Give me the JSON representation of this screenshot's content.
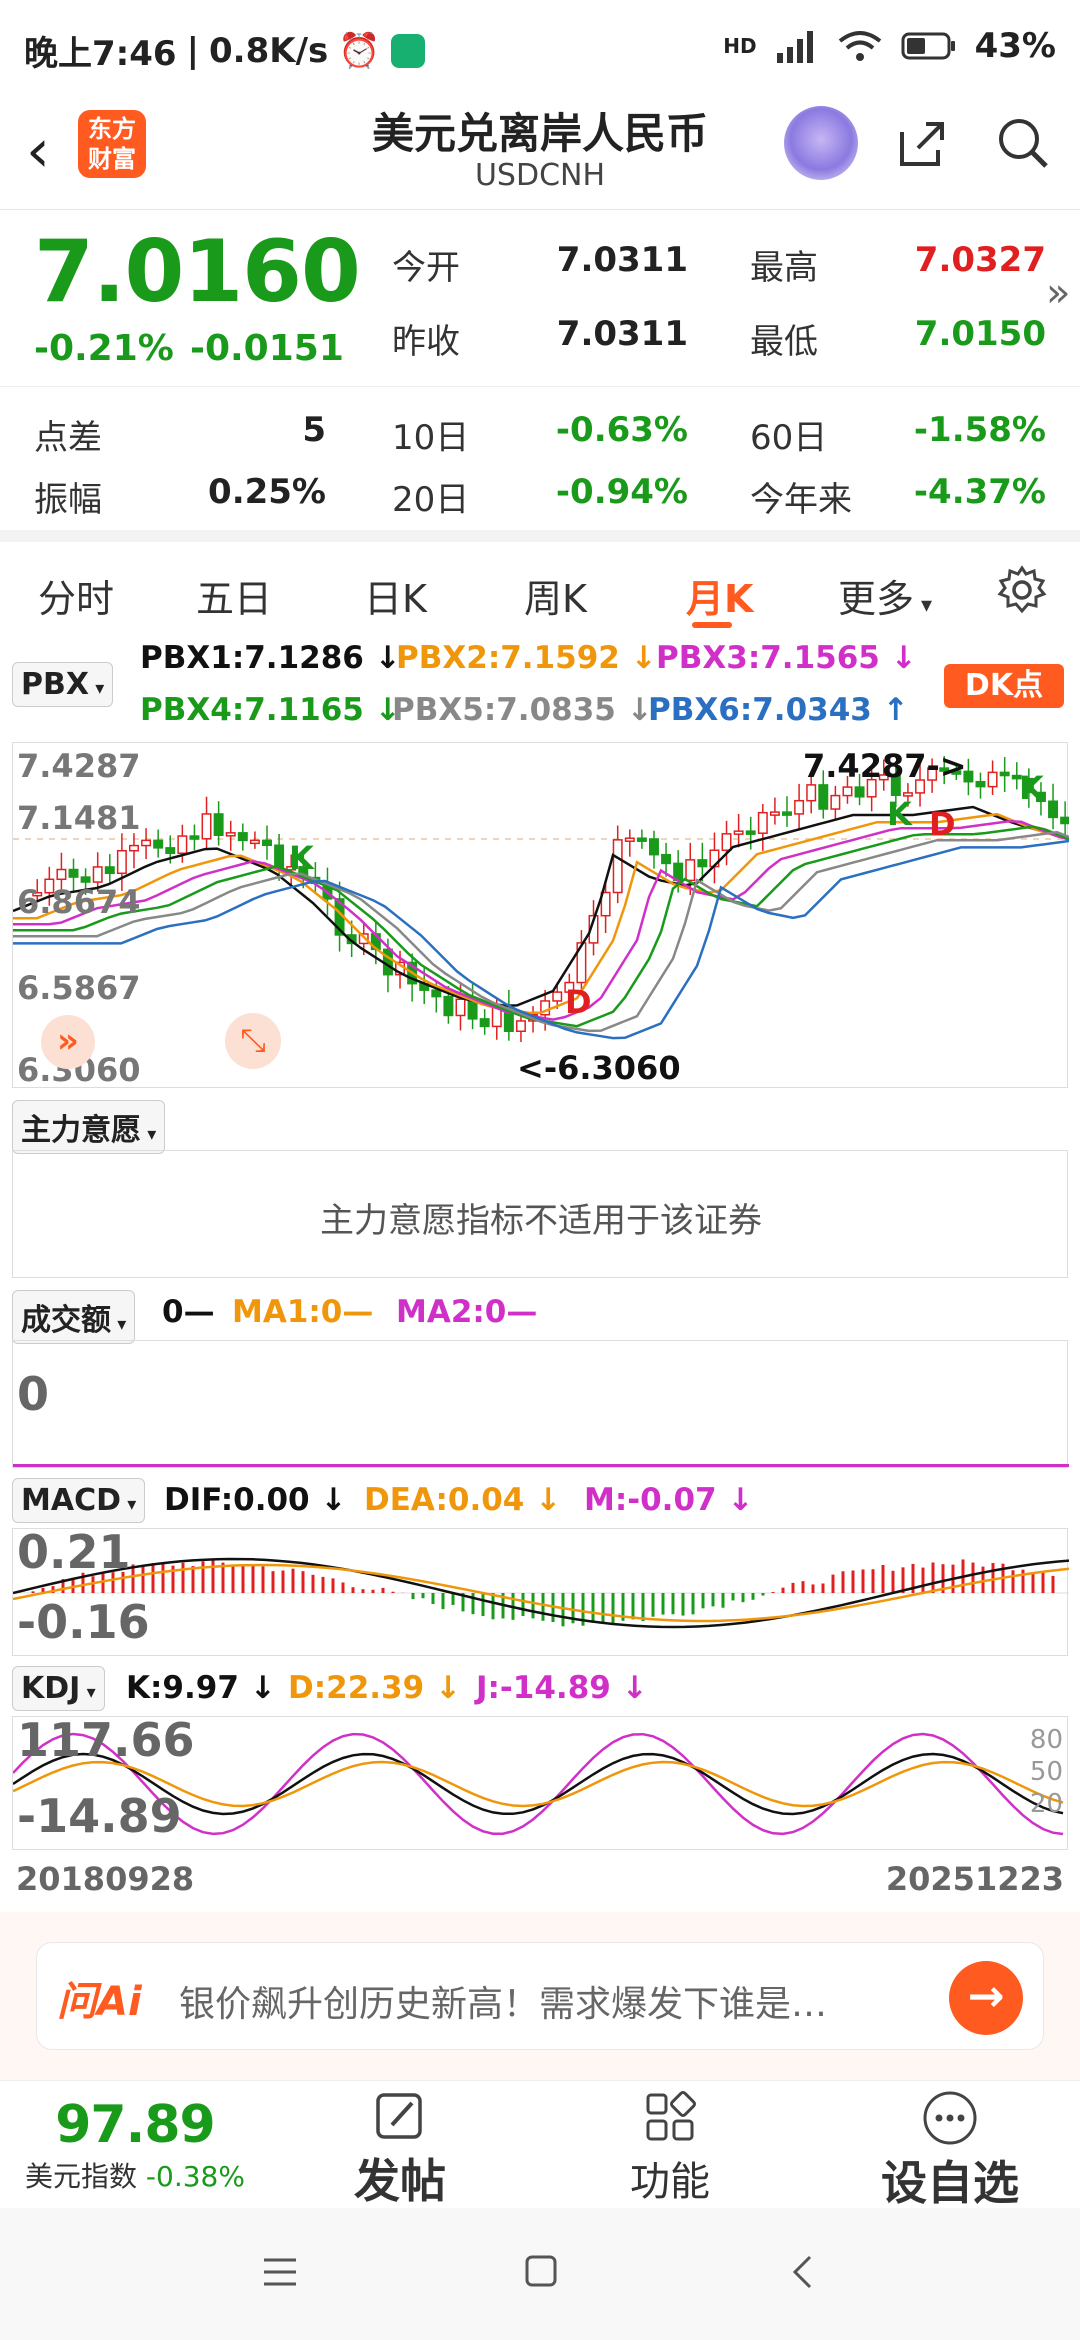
{
  "status_bar": {
    "time": "晚上7:46",
    "speed": "0.8K/s",
    "signal": "HD",
    "battery": "43%"
  },
  "header": {
    "logo_text": "东方财富",
    "title": "美元兑离岸人民币",
    "subtitle": "USDCNH"
  },
  "quote": {
    "price": "7.0160",
    "change_pct": "-0.21%",
    "change": "-0.0151",
    "stats": [
      {
        "label": "今开",
        "value": "7.0311",
        "color": "#111111"
      },
      {
        "label": "最高",
        "value": "7.0327",
        "color": "#e02020"
      },
      {
        "label": "昨收",
        "value": "7.0311",
        "color": "#111111"
      },
      {
        "label": "最低",
        "value": "7.0150",
        "color": "#1a9a1a"
      }
    ],
    "stats2": [
      {
        "label": "点差",
        "value": "5",
        "color": "#111111"
      },
      {
        "label": "10日",
        "value": "-0.63%",
        "color": "#1a9a1a"
      },
      {
        "label": "60日",
        "value": "-1.58%",
        "color": "#1a9a1a"
      },
      {
        "label": "振幅",
        "value": "0.25%",
        "color": "#111111"
      },
      {
        "label": "20日",
        "value": "-0.94%",
        "color": "#1a9a1a"
      },
      {
        "label": "今年来",
        "value": "-4.37%",
        "color": "#1a9a1a"
      }
    ]
  },
  "tabs": {
    "items": [
      "分时",
      "五日",
      "日K",
      "周K",
      "月K",
      "更多"
    ],
    "active": "月K"
  },
  "main_chart": {
    "indicator": "PBX",
    "legend": [
      {
        "text": "PBX1:7.1286 ↓",
        "color": "#111111"
      },
      {
        "text": "PBX2:7.1592 ↓",
        "color": "#f0960a"
      },
      {
        "text": "PBX3:7.1565 ↓",
        "color": "#d030c8"
      },
      {
        "text": "PBX4:7.1165 ↓",
        "color": "#1a9a1a"
      },
      {
        "text": "PBX5:7.0835 ↓",
        "color": "#888888"
      },
      {
        "text": "PBX6:7.0343 ↑",
        "color": "#2a6fc0"
      }
    ],
    "dk_label": "DK点",
    "y_labels": [
      "7.4287",
      "7.1481",
      "6.8674",
      "6.5867",
      "6.3060"
    ],
    "high_annotation": "7.4287->",
    "low_annotation": "<-6.3060",
    "marker_k": "K",
    "marker_d": "D"
  },
  "main_force": {
    "label": "主力意愿",
    "message": "主力意愿指标不适用于该证券"
  },
  "volume": {
    "label": "成交额",
    "legend": [
      {
        "text": "0—",
        "color": "#111111"
      },
      {
        "text": "MA1:0—",
        "color": "#f0960a"
      },
      {
        "text": "MA2:0—",
        "color": "#d030c8"
      }
    ],
    "y_label": "0"
  },
  "macd": {
    "label": "MACD",
    "legend": [
      {
        "text": "DIF:0.00 ↓",
        "color": "#111111"
      },
      {
        "text": "DEA:0.04 ↓",
        "color": "#f0960a"
      },
      {
        "text": "M:-0.07 ↓",
        "color": "#d030c8"
      }
    ],
    "y_top": "0.21",
    "y_bottom": "-0.16"
  },
  "kdj": {
    "label": "KDJ",
    "legend": [
      {
        "text": "K:9.97 ↓",
        "color": "#111111"
      },
      {
        "text": "D:22.39 ↓",
        "color": "#f0960a"
      },
      {
        "text": "J:-14.89 ↓",
        "color": "#d030c8"
      }
    ],
    "y_top": "117.66",
    "y_bottom": "-14.89",
    "levels": [
      "80",
      "50",
      "20"
    ]
  },
  "dates": {
    "start": "20180928",
    "end": "20251223"
  },
  "ai_bar": {
    "logo": "问Ai",
    "text": "银价飙升创历史新高！需求爆发下谁是…"
  },
  "toolbar": {
    "index_value": "97.89",
    "index_name": "美元指数",
    "index_change": "-0.38%",
    "post": "发帖",
    "func": "功能",
    "watch": "设自选"
  }
}
